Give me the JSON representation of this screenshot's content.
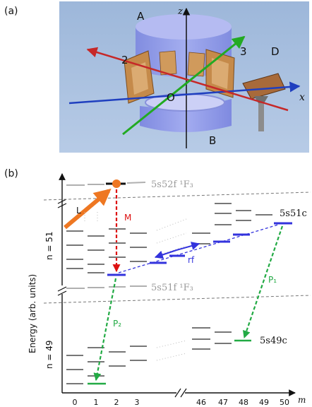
{
  "panel_a": {
    "label": "(a)",
    "axis_z": "z",
    "axis_x": "x",
    "origin": "O",
    "tag_A": "A",
    "tag_B": "B",
    "tag_D": "D",
    "tag_2": "2",
    "tag_3": "3",
    "colors": {
      "background": "#a9c2e2",
      "electrode": "#8b96e6",
      "x_axis": "#1f3fbf",
      "red_beam": "#c62828",
      "green_beam": "#22aa22",
      "copper": "#c58a4a"
    }
  },
  "panel_b": {
    "label": "(b)",
    "ylabel": "Energy  (arb. units)",
    "xlabel": "m",
    "n51": "n = 51",
    "n49": "n = 49",
    "state_top": "5s52f ¹F₃",
    "state_mid": "5s51f ¹F₃",
    "state_51c": "5s51c",
    "state_49c": "5s49c",
    "L": "L",
    "M": "M",
    "rf": "rf",
    "P1": "P₁",
    "P2": "P₂",
    "ticks": [
      "0",
      "1",
      "2",
      "3",
      "46",
      "47",
      "48",
      "49",
      "50"
    ],
    "colors": {
      "laser": "#ee7722",
      "microwave": "#dd1111",
      "rf": "#3333dd",
      "pulse": "#22aa44",
      "level": "#777777",
      "grey_state": "#b0b0b0"
    }
  }
}
